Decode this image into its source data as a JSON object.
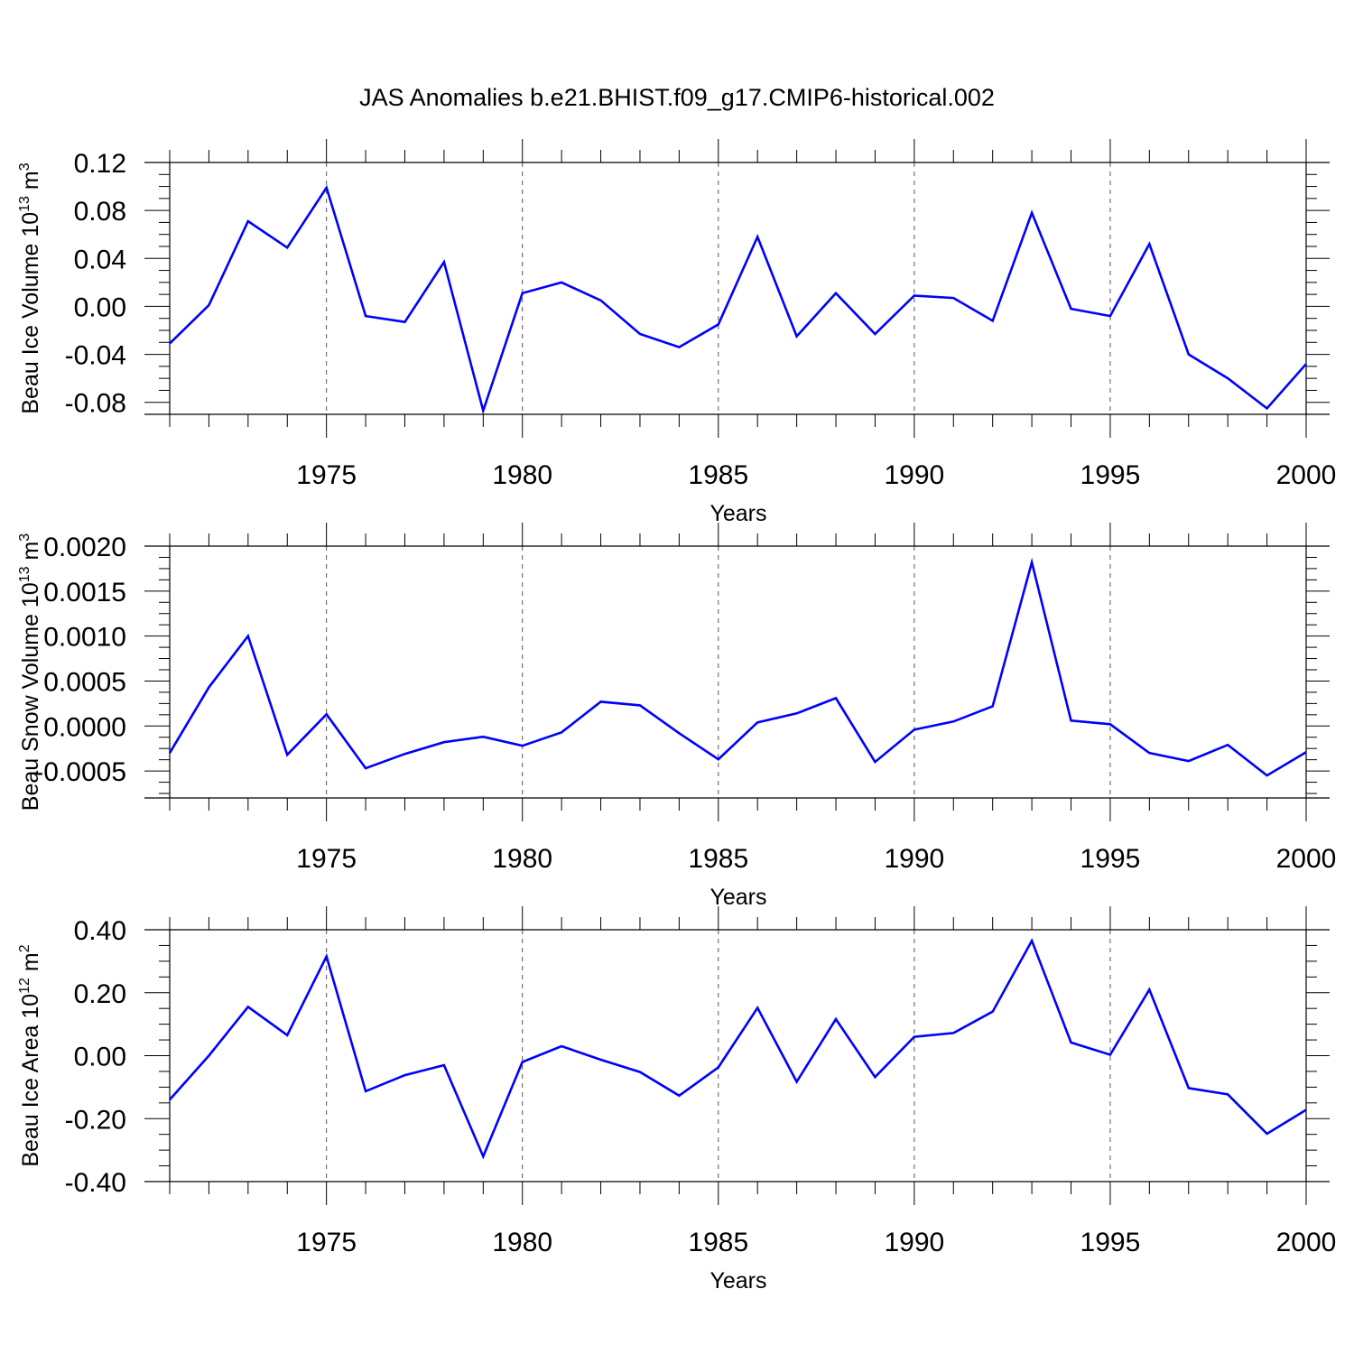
{
  "title": "JAS Anomalies b.e21.BHIST.f09_g17.CMIP6-historical.002",
  "series_color": "#0000ff",
  "chart_data": [
    {
      "type": "line",
      "ylabel_main": "Beau Ice Volume 10",
      "ylabel_exp": "13",
      "ylabel_unit": " m",
      "ylabel_unit_exp": "3",
      "xlabel": "Years",
      "xlim": [
        1971,
        2000
      ],
      "ylim": [
        -0.09,
        0.12
      ],
      "xticks": [
        1975,
        1980,
        1985,
        1990,
        1995,
        2000
      ],
      "yticks": [
        -0.08,
        -0.04,
        0.0,
        0.04,
        0.08,
        0.12
      ],
      "ytick_labels": [
        "-0.08",
        "-0.04",
        "0.00",
        "0.04",
        "0.08",
        "0.12"
      ],
      "x": [
        1971,
        1972,
        1973,
        1974,
        1975,
        1976,
        1977,
        1978,
        1979,
        1980,
        1981,
        1982,
        1983,
        1984,
        1985,
        1986,
        1987,
        1988,
        1989,
        1990,
        1991,
        1992,
        1993,
        1994,
        1995,
        1996,
        1997,
        1998,
        1999,
        2000
      ],
      "values": [
        -0.031,
        0.001,
        0.071,
        0.049,
        0.099,
        -0.008,
        -0.013,
        0.037,
        -0.087,
        0.011,
        0.02,
        0.005,
        -0.023,
        -0.034,
        -0.015,
        0.058,
        -0.025,
        0.011,
        -0.023,
        0.009,
        0.007,
        -0.012,
        0.078,
        -0.002,
        -0.008,
        0.052,
        -0.04,
        -0.06,
        -0.085,
        -0.048
      ]
    },
    {
      "type": "line",
      "ylabel_main": "Beau Snow Volume 10",
      "ylabel_exp": "13",
      "ylabel_unit": " m",
      "ylabel_unit_exp": "3",
      "xlabel": "Years",
      "xlim": [
        1971,
        2000
      ],
      "ylim": [
        -0.0008,
        0.002
      ],
      "xticks": [
        1975,
        1980,
        1985,
        1990,
        1995,
        2000
      ],
      "yticks": [
        -0.0005,
        0.0,
        0.0005,
        0.001,
        0.0015,
        0.002
      ],
      "ytick_labels": [
        "-0.0005",
        "0.0000",
        "0.0005",
        "0.0010",
        "0.0015",
        "0.0020"
      ],
      "x": [
        1971,
        1972,
        1973,
        1974,
        1975,
        1976,
        1977,
        1978,
        1979,
        1980,
        1981,
        1982,
        1983,
        1984,
        1985,
        1986,
        1987,
        1988,
        1989,
        1990,
        1991,
        1992,
        1993,
        1994,
        1995,
        1996,
        1997,
        1998,
        1999,
        2000
      ],
      "values": [
        -0.0003,
        0.00043,
        0.001,
        -0.00032,
        0.00013,
        -0.00047,
        -0.00031,
        -0.00018,
        -0.00012,
        -0.00022,
        -7e-05,
        0.00027,
        0.00023,
        -8e-05,
        -0.00037,
        4e-05,
        0.00014,
        0.00031,
        -0.0004,
        -4e-05,
        5e-05,
        0.00022,
        0.00182,
        6e-05,
        2e-05,
        -0.0003,
        -0.00039,
        -0.00021,
        -0.00055,
        -0.00029
      ]
    },
    {
      "type": "line",
      "ylabel_main": "Beau Ice Area 10",
      "ylabel_exp": "12",
      "ylabel_unit": " m",
      "ylabel_unit_exp": "2",
      "xlabel": "Years",
      "xlim": [
        1971,
        2000
      ],
      "ylim": [
        -0.4,
        0.4
      ],
      "xticks": [
        1975,
        1980,
        1985,
        1990,
        1995,
        2000
      ],
      "yticks": [
        -0.4,
        -0.2,
        0.0,
        0.2,
        0.4
      ],
      "ytick_labels": [
        "-0.40",
        "-0.20",
        "0.00",
        "0.20",
        "0.40"
      ],
      "x": [
        1971,
        1972,
        1973,
        1974,
        1975,
        1976,
        1977,
        1978,
        1979,
        1980,
        1981,
        1982,
        1983,
        1984,
        1985,
        1986,
        1987,
        1988,
        1989,
        1990,
        1991,
        1992,
        1993,
        1994,
        1995,
        1996,
        1997,
        1998,
        1999,
        2000
      ],
      "values": [
        -0.14,
        0.0,
        0.155,
        0.065,
        0.315,
        -0.113,
        -0.062,
        -0.03,
        -0.32,
        -0.02,
        0.03,
        -0.013,
        -0.052,
        -0.127,
        -0.037,
        0.152,
        -0.083,
        0.116,
        -0.068,
        0.06,
        0.072,
        0.14,
        0.365,
        0.042,
        0.003,
        0.21,
        -0.103,
        -0.123,
        -0.248,
        -0.172
      ]
    }
  ]
}
